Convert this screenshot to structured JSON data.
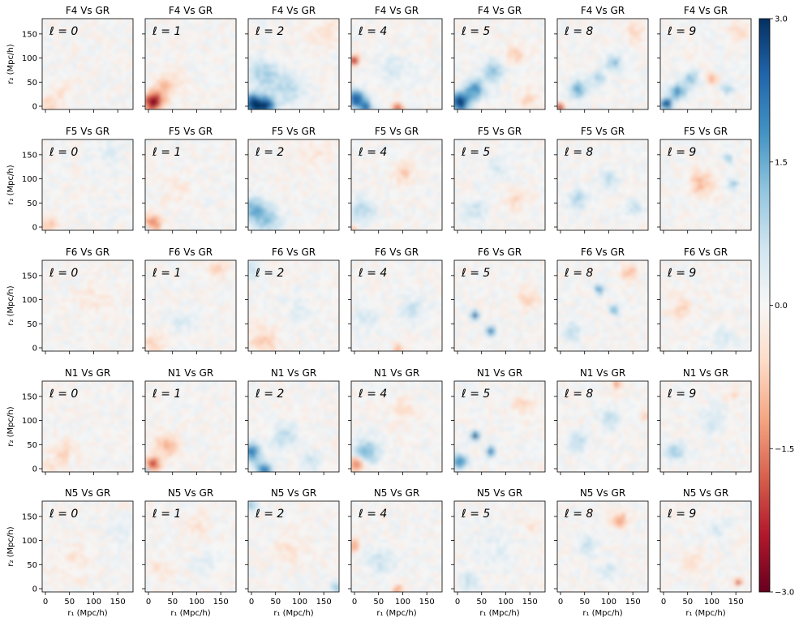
{
  "chart_data": {
    "type": "heatmap",
    "colormap": "RdBu",
    "models": [
      "F4",
      "F5",
      "F6",
      "N1",
      "N5"
    ],
    "reference": "GR",
    "multipoles": [
      0,
      1,
      2,
      4,
      5,
      8,
      9
    ],
    "panel_title_template": "{model} Vs GR",
    "panel_label_prefix": "ℓ = ",
    "xlabel": "r_1 (Mpc/h)",
    "ylabel": "r_2 (Mpc/h)",
    "xlim": [
      0,
      175
    ],
    "ylim": [
      0,
      175
    ],
    "xticks": [
      "0",
      "50",
      "100",
      "150"
    ],
    "yticks": [
      "0",
      "50",
      "100",
      "150"
    ],
    "colorbar": {
      "vmin": -3.0,
      "vmax": 3.0,
      "ticks": [
        "3.0",
        "1.5",
        "0.0",
        "−1.5",
        "−3.0"
      ]
    },
    "grid_resolution": 24,
    "panels": [
      {
        "model": "F4",
        "ell": 0,
        "features": [
          {
            "x": 15,
            "y": 10,
            "r": 22,
            "v": -0.6
          },
          {
            "x": 40,
            "y": 40,
            "r": 20,
            "v": -0.3
          }
        ]
      },
      {
        "model": "F4",
        "ell": 1,
        "features": [
          {
            "x": 15,
            "y": 15,
            "r": 18,
            "v": -2.9
          },
          {
            "x": 35,
            "y": 40,
            "r": 22,
            "v": -0.9
          },
          {
            "x": 60,
            "y": 60,
            "r": 20,
            "v": -0.4
          }
        ]
      },
      {
        "model": "F4",
        "ell": 2,
        "features": [
          {
            "x": 8,
            "y": 12,
            "r": 20,
            "v": 2.9
          },
          {
            "x": 35,
            "y": 8,
            "r": 18,
            "v": 2.6
          },
          {
            "x": 30,
            "y": 70,
            "r": 30,
            "v": 1.0
          },
          {
            "x": 80,
            "y": 40,
            "r": 30,
            "v": 0.9
          },
          {
            "x": 150,
            "y": 150,
            "r": 30,
            "v": -0.5
          }
        ]
      },
      {
        "model": "F4",
        "ell": 4,
        "features": [
          {
            "x": 10,
            "y": 20,
            "r": 18,
            "v": 2.7
          },
          {
            "x": 30,
            "y": 5,
            "r": 12,
            "v": 2.0
          },
          {
            "x": 5,
            "y": 95,
            "r": 10,
            "v": -2.5
          },
          {
            "x": 90,
            "y": 5,
            "r": 10,
            "v": -2.0
          },
          {
            "x": 80,
            "y": 80,
            "r": 30,
            "v": 0.5
          }
        ]
      },
      {
        "model": "F4",
        "ell": 5,
        "features": [
          {
            "x": 10,
            "y": 15,
            "r": 20,
            "v": 2.9
          },
          {
            "x": 40,
            "y": 40,
            "r": 20,
            "v": 1.8
          },
          {
            "x": 75,
            "y": 75,
            "r": 20,
            "v": 1.3
          },
          {
            "x": 120,
            "y": 110,
            "r": 20,
            "v": -0.7
          },
          {
            "x": 140,
            "y": 20,
            "r": 20,
            "v": -0.6
          }
        ]
      },
      {
        "model": "F4",
        "ell": 8,
        "features": [
          {
            "x": 5,
            "y": 5,
            "r": 8,
            "v": -3.0
          },
          {
            "x": 40,
            "y": 40,
            "r": 18,
            "v": 1.5
          },
          {
            "x": 80,
            "y": 60,
            "r": 15,
            "v": 1.0
          },
          {
            "x": 110,
            "y": 90,
            "r": 15,
            "v": 1.3
          },
          {
            "x": 150,
            "y": 150,
            "r": 20,
            "v": -0.6
          }
        ]
      },
      {
        "model": "F4",
        "ell": 9,
        "features": [
          {
            "x": 12,
            "y": 12,
            "r": 12,
            "v": 2.9
          },
          {
            "x": 35,
            "y": 35,
            "r": 16,
            "v": 1.8
          },
          {
            "x": 60,
            "y": 60,
            "r": 15,
            "v": 1.3
          },
          {
            "x": 100,
            "y": 60,
            "r": 10,
            "v": -1.4
          },
          {
            "x": 130,
            "y": 40,
            "r": 10,
            "v": 1.2
          },
          {
            "x": 150,
            "y": 150,
            "r": 20,
            "v": -0.6
          }
        ]
      },
      {
        "model": "F5",
        "ell": 0,
        "features": [
          {
            "x": 10,
            "y": 10,
            "r": 20,
            "v": -0.8
          },
          {
            "x": 130,
            "y": 150,
            "r": 30,
            "v": 0.3
          }
        ]
      },
      {
        "model": "F5",
        "ell": 1,
        "features": [
          {
            "x": 12,
            "y": 12,
            "r": 20,
            "v": -1.7
          },
          {
            "x": 5,
            "y": 3,
            "r": 8,
            "v": 2.0
          },
          {
            "x": 60,
            "y": 80,
            "r": 30,
            "v": -0.3
          }
        ]
      },
      {
        "model": "F5",
        "ell": 2,
        "features": [
          {
            "x": 10,
            "y": 40,
            "r": 25,
            "v": 1.4
          },
          {
            "x": 40,
            "y": 20,
            "r": 25,
            "v": 1.0
          },
          {
            "x": 130,
            "y": 150,
            "r": 30,
            "v": -0.4
          }
        ]
      },
      {
        "model": "F5",
        "ell": 4,
        "features": [
          {
            "x": 20,
            "y": 40,
            "r": 25,
            "v": 0.9
          },
          {
            "x": 100,
            "y": 110,
            "r": 20,
            "v": -0.8
          },
          {
            "x": 5,
            "y": 5,
            "r": 8,
            "v": -1.0
          }
        ]
      },
      {
        "model": "F5",
        "ell": 5,
        "features": [
          {
            "x": 40,
            "y": 40,
            "r": 25,
            "v": 0.6
          },
          {
            "x": 120,
            "y": 60,
            "r": 20,
            "v": -0.6
          },
          {
            "x": 80,
            "y": 120,
            "r": 20,
            "v": 0.5
          }
        ]
      },
      {
        "model": "F5",
        "ell": 8,
        "features": [
          {
            "x": 40,
            "y": 60,
            "r": 20,
            "v": 0.9
          },
          {
            "x": 100,
            "y": 100,
            "r": 20,
            "v": 0.7
          },
          {
            "x": 150,
            "y": 40,
            "r": 20,
            "v": 0.6
          }
        ]
      },
      {
        "model": "F5",
        "ell": 9,
        "features": [
          {
            "x": 80,
            "y": 90,
            "r": 25,
            "v": -1.0
          },
          {
            "x": 130,
            "y": 140,
            "r": 10,
            "v": 1.0
          },
          {
            "x": 140,
            "y": 90,
            "r": 10,
            "v": 1.3
          }
        ]
      },
      {
        "model": "F6",
        "ell": 0,
        "features": [
          {
            "x": 100,
            "y": 100,
            "r": 40,
            "v": -0.3
          }
        ]
      },
      {
        "model": "F6",
        "ell": 1,
        "features": [
          {
            "x": 15,
            "y": 15,
            "r": 20,
            "v": -0.7
          },
          {
            "x": 140,
            "y": 160,
            "r": 20,
            "v": -0.6
          },
          {
            "x": 70,
            "y": 60,
            "r": 25,
            "v": 0.4
          }
        ]
      },
      {
        "model": "F6",
        "ell": 2,
        "features": [
          {
            "x": 5,
            "y": 160,
            "r": 20,
            "v": 0.6
          },
          {
            "x": 30,
            "y": 20,
            "r": 30,
            "v": -0.7
          },
          {
            "x": 100,
            "y": 80,
            "r": 30,
            "v": 0.3
          }
        ]
      },
      {
        "model": "F6",
        "ell": 4,
        "features": [
          {
            "x": 90,
            "y": 5,
            "r": 10,
            "v": -1.2
          },
          {
            "x": 120,
            "y": 80,
            "r": 25,
            "v": 0.6
          },
          {
            "x": 30,
            "y": 60,
            "r": 25,
            "v": 0.5
          }
        ]
      },
      {
        "model": "F6",
        "ell": 5,
        "features": [
          {
            "x": 40,
            "y": 70,
            "r": 9,
            "v": 2.4
          },
          {
            "x": 70,
            "y": 40,
            "r": 9,
            "v": 2.2
          },
          {
            "x": 140,
            "y": 100,
            "r": 20,
            "v": -0.7
          }
        ]
      },
      {
        "model": "F6",
        "ell": 8,
        "features": [
          {
            "x": 80,
            "y": 120,
            "r": 10,
            "v": 1.8
          },
          {
            "x": 110,
            "y": 80,
            "r": 10,
            "v": 1.6
          },
          {
            "x": 140,
            "y": 150,
            "r": 15,
            "v": -1.0
          },
          {
            "x": 30,
            "y": 40,
            "r": 20,
            "v": 0.7
          }
        ]
      },
      {
        "model": "F6",
        "ell": 9,
        "features": [
          {
            "x": 40,
            "y": 80,
            "r": 25,
            "v": -0.6
          },
          {
            "x": 120,
            "y": 30,
            "r": 20,
            "v": 0.5
          }
        ]
      },
      {
        "model": "N1",
        "ell": 0,
        "features": [
          {
            "x": 40,
            "y": 40,
            "r": 25,
            "v": -0.6
          },
          {
            "x": 10,
            "y": 10,
            "r": 15,
            "v": -0.5
          }
        ]
      },
      {
        "model": "N1",
        "ell": 1,
        "features": [
          {
            "x": 15,
            "y": 15,
            "r": 15,
            "v": -2.0
          },
          {
            "x": 40,
            "y": 50,
            "r": 25,
            "v": -1.0
          },
          {
            "x": 5,
            "y": 2,
            "r": 5,
            "v": 2.0
          }
        ]
      },
      {
        "model": "N1",
        "ell": 2,
        "features": [
          {
            "x": 5,
            "y": 40,
            "r": 20,
            "v": 2.0
          },
          {
            "x": 30,
            "y": 5,
            "r": 15,
            "v": 2.3
          },
          {
            "x": 70,
            "y": 70,
            "r": 25,
            "v": 0.8
          },
          {
            "x": 120,
            "y": 20,
            "r": 20,
            "v": 0.6
          }
        ]
      },
      {
        "model": "N1",
        "ell": 4,
        "features": [
          {
            "x": 10,
            "y": 15,
            "r": 15,
            "v": -1.8
          },
          {
            "x": 30,
            "y": 40,
            "r": 25,
            "v": 1.3
          },
          {
            "x": 100,
            "y": 120,
            "r": 25,
            "v": -0.5
          }
        ]
      },
      {
        "model": "N1",
        "ell": 5,
        "features": [
          {
            "x": 40,
            "y": 70,
            "r": 9,
            "v": 2.8
          },
          {
            "x": 70,
            "y": 40,
            "r": 9,
            "v": 2.6
          },
          {
            "x": 10,
            "y": 20,
            "r": 15,
            "v": 2.0
          },
          {
            "x": 130,
            "y": 130,
            "r": 20,
            "v": -0.6
          }
        ]
      },
      {
        "model": "N1",
        "ell": 8,
        "features": [
          {
            "x": 115,
            "y": 170,
            "r": 10,
            "v": -1.4
          },
          {
            "x": 40,
            "y": 60,
            "r": 20,
            "v": 0.9
          },
          {
            "x": 100,
            "y": 100,
            "r": 20,
            "v": 0.8
          },
          {
            "x": 170,
            "y": 110,
            "r": 8,
            "v": -1.0
          }
        ]
      },
      {
        "model": "N1",
        "ell": 9,
        "features": [
          {
            "x": 30,
            "y": 40,
            "r": 20,
            "v": 0.9
          },
          {
            "x": 100,
            "y": 100,
            "r": 25,
            "v": 0.6
          },
          {
            "x": 140,
            "y": 150,
            "r": 15,
            "v": -0.5
          }
        ]
      },
      {
        "model": "N5",
        "ell": 0,
        "features": [
          {
            "x": 60,
            "y": 60,
            "r": 40,
            "v": -0.3
          },
          {
            "x": 150,
            "y": 120,
            "r": 30,
            "v": 0.3
          }
        ]
      },
      {
        "model": "N5",
        "ell": 1,
        "features": [
          {
            "x": 30,
            "y": 40,
            "r": 25,
            "v": -0.4
          },
          {
            "x": 100,
            "y": 130,
            "r": 25,
            "v": -0.4
          },
          {
            "x": 120,
            "y": 60,
            "r": 20,
            "v": 0.4
          }
        ]
      },
      {
        "model": "N5",
        "ell": 2,
        "features": [
          {
            "x": 5,
            "y": 170,
            "r": 12,
            "v": 1.0
          },
          {
            "x": 170,
            "y": 10,
            "r": 12,
            "v": 1.2
          },
          {
            "x": 80,
            "y": 80,
            "r": 30,
            "v": -0.4
          }
        ]
      },
      {
        "model": "N5",
        "ell": 4,
        "features": [
          {
            "x": 5,
            "y": 90,
            "r": 12,
            "v": -1.3
          },
          {
            "x": 90,
            "y": 5,
            "r": 12,
            "v": -1.2
          },
          {
            "x": 60,
            "y": 60,
            "r": 30,
            "v": 0.6
          }
        ]
      },
      {
        "model": "N5",
        "ell": 5,
        "features": [
          {
            "x": 80,
            "y": 80,
            "r": 40,
            "v": 0.3
          },
          {
            "x": 30,
            "y": 20,
            "r": 20,
            "v": 0.6
          },
          {
            "x": 150,
            "y": 130,
            "r": 20,
            "v": -0.4
          }
        ]
      },
      {
        "model": "N5",
        "ell": 8,
        "features": [
          {
            "x": 120,
            "y": 140,
            "r": 15,
            "v": -1.3
          },
          {
            "x": 60,
            "y": 90,
            "r": 20,
            "v": 0.7
          },
          {
            "x": 100,
            "y": 40,
            "r": 20,
            "v": 0.6
          }
        ]
      },
      {
        "model": "N5",
        "ell": 9,
        "features": [
          {
            "x": 150,
            "y": 20,
            "r": 8,
            "v": -2.0
          },
          {
            "x": 60,
            "y": 60,
            "r": 20,
            "v": -0.7
          },
          {
            "x": 110,
            "y": 120,
            "r": 20,
            "v": 0.5
          }
        ]
      }
    ]
  }
}
